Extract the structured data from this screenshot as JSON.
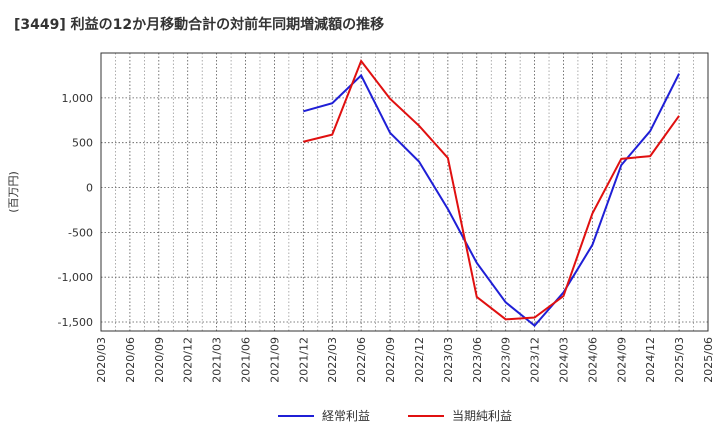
{
  "chart_data": {
    "type": "line",
    "title": "[3449]  利益の12か月移動合計の対前年同期増減額の推移",
    "ylabel": "(百万円)",
    "xlabel": "",
    "ylim": [
      -1600,
      1500
    ],
    "yticks": [
      1000,
      500,
      0,
      -500,
      -1000,
      -1500
    ],
    "ytick_labels": [
      "1,000",
      "500",
      "0",
      "-500",
      "-1,000",
      "-1,500"
    ],
    "categories": [
      "2020/03",
      "2020/06",
      "2020/09",
      "2020/12",
      "2021/03",
      "2021/06",
      "2021/09",
      "2021/12",
      "2022/03",
      "2022/06",
      "2022/09",
      "2022/12",
      "2023/03",
      "2023/06",
      "2023/09",
      "2023/12",
      "2024/03",
      "2024/06",
      "2024/09",
      "2024/12",
      "2025/03",
      "2025/06"
    ],
    "grid": true,
    "legend_position": "bottom",
    "series": [
      {
        "name": "経常利益",
        "color": "#1f1fd6",
        "x": [
          "2021/12",
          "2022/03",
          "2022/06",
          "2022/09",
          "2022/12",
          "2023/03",
          "2023/06",
          "2023/09",
          "2023/12",
          "2024/03",
          "2024/06",
          "2024/09",
          "2024/12",
          "2025/03"
        ],
        "values": [
          850,
          940,
          1250,
          610,
          290,
          -240,
          -840,
          -1280,
          -1540,
          -1170,
          -640,
          250,
          630,
          1270
        ]
      },
      {
        "name": "当期純利益",
        "color": "#e01010",
        "x": [
          "2021/12",
          "2022/03",
          "2022/06",
          "2022/09",
          "2022/12",
          "2023/03",
          "2023/06",
          "2023/09",
          "2023/12",
          "2024/03",
          "2024/06",
          "2024/09",
          "2024/12",
          "2025/03"
        ],
        "values": [
          510,
          590,
          1410,
          990,
          690,
          330,
          -1220,
          -1470,
          -1450,
          -1210,
          -290,
          320,
          350,
          800
        ]
      }
    ]
  }
}
